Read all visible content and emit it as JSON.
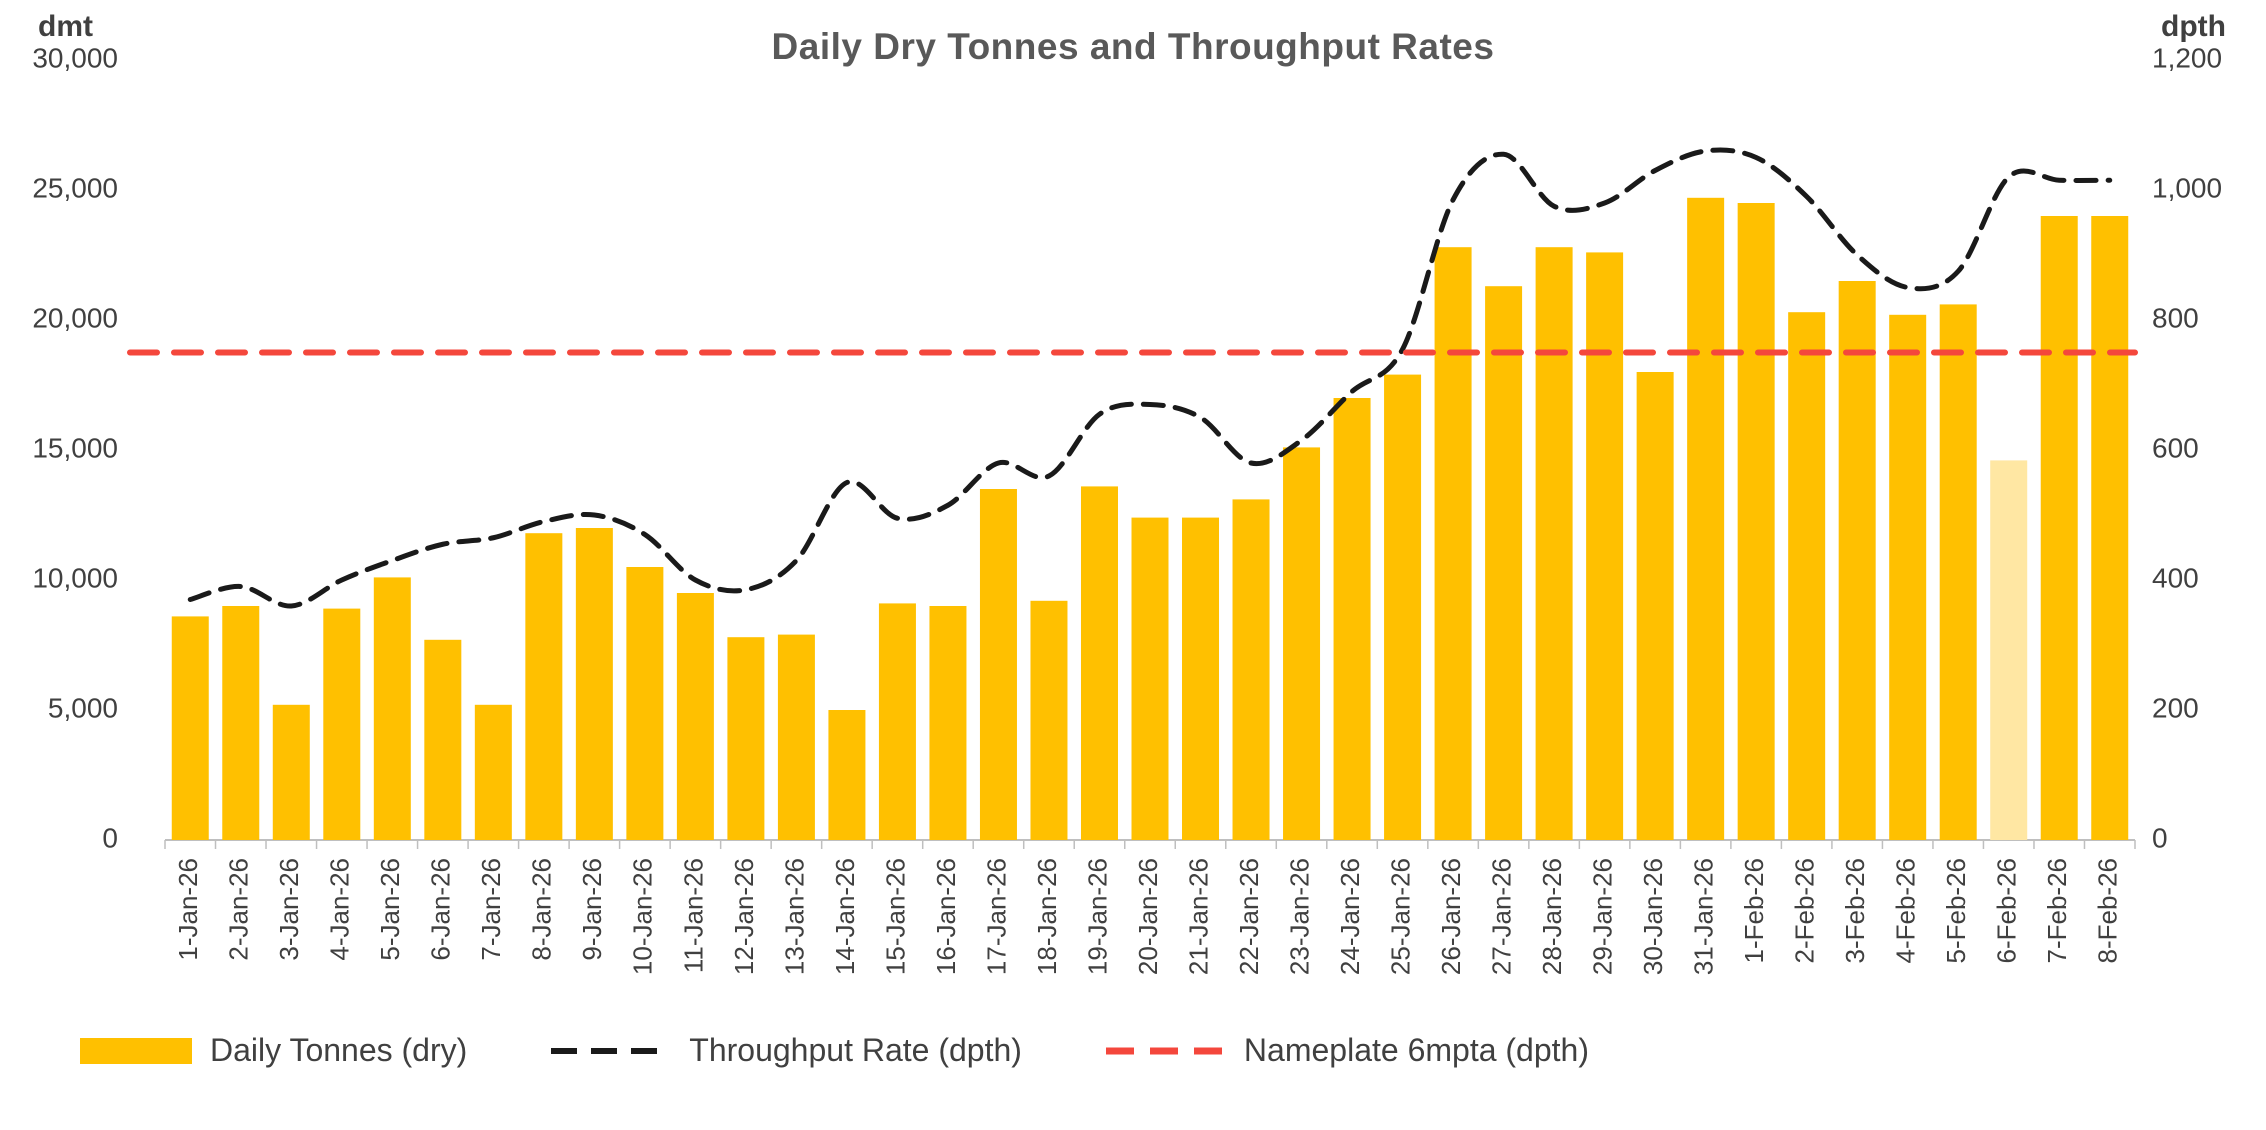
{
  "colors": {
    "bar": "#FFC000",
    "bar_light": "#FFE7A3",
    "line": "#1A1A1A",
    "nameplate": "#F4473C",
    "title": "#595959",
    "text": "#404040",
    "axis": "#BFBFBF"
  },
  "chart_data": {
    "type": "bar",
    "title": "Daily Dry Tonnes and Throughput Rates",
    "left_axis": {
      "label": "dmt",
      "min": 0,
      "max": 30000,
      "tick_step": 5000
    },
    "right_axis": {
      "label": "dpth",
      "min": 0,
      "max": 1200,
      "tick_step": 200
    },
    "legend_position": "bottom",
    "grid": false,
    "highlight_index": 36,
    "categories": [
      "1-Jan-26",
      "2-Jan-26",
      "3-Jan-26",
      "4-Jan-26",
      "5-Jan-26",
      "6-Jan-26",
      "7-Jan-26",
      "8-Jan-26",
      "9-Jan-26",
      "10-Jan-26",
      "11-Jan-26",
      "12-Jan-26",
      "13-Jan-26",
      "14-Jan-26",
      "15-Jan-26",
      "16-Jan-26",
      "17-Jan-26",
      "18-Jan-26",
      "19-Jan-26",
      "20-Jan-26",
      "21-Jan-26",
      "22-Jan-26",
      "23-Jan-26",
      "24-Jan-26",
      "25-Jan-26",
      "26-Jan-26",
      "27-Jan-26",
      "28-Jan-26",
      "29-Jan-26",
      "30-Jan-26",
      "31-Jan-26",
      "1-Feb-26",
      "2-Feb-26",
      "3-Feb-26",
      "4-Feb-26",
      "5-Feb-26",
      "6-Feb-26",
      "7-Feb-26",
      "8-Feb-26"
    ],
    "series": [
      {
        "name": "Daily Tonnes (dry)",
        "type": "bar",
        "axis": "left",
        "values": [
          8600,
          9000,
          5200,
          8900,
          10100,
          7700,
          5200,
          11800,
          12000,
          10500,
          9500,
          7800,
          7900,
          5000,
          9100,
          9000,
          13500,
          9200,
          13600,
          12400,
          12400,
          13100,
          15100,
          17000,
          17900,
          22800,
          21300,
          22800,
          22600,
          18000,
          24700,
          24500,
          20300,
          21500,
          20200,
          20600,
          14600,
          24000,
          24000
        ]
      },
      {
        "name": "Throughput Rate (dpth)",
        "type": "line",
        "axis": "right",
        "values": [
          370,
          390,
          360,
          400,
          430,
          455,
          465,
          490,
          500,
          470,
          400,
          385,
          430,
          550,
          495,
          515,
          580,
          560,
          655,
          670,
          650,
          580,
          615,
          690,
          755,
          985,
          1055,
          975,
          980,
          1030,
          1060,
          1050,
          990,
          900,
          850,
          875,
          1020,
          1015,
          1015
        ]
      },
      {
        "name": "Nameplate 6mpta (dpth)",
        "type": "hline",
        "axis": "right",
        "value": 750
      }
    ]
  }
}
